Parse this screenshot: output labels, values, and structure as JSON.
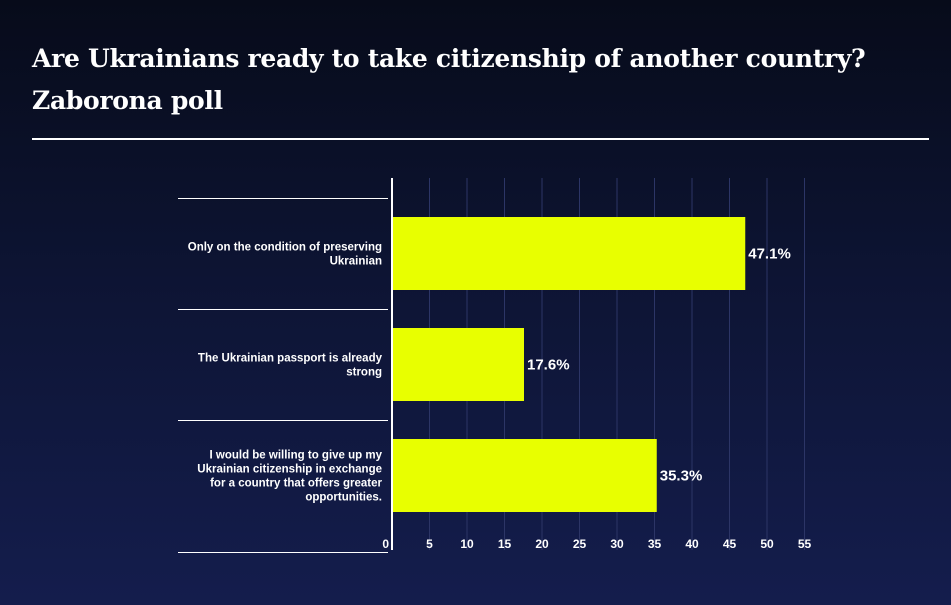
{
  "header": {
    "title_line1": "Are Ukrainians ready to take citizenship of another country?",
    "title_line2": "Zaborona poll"
  },
  "colors": {
    "bar": "#e8ff00",
    "text": "#ffffff",
    "grid": "#2c3566",
    "background_top": "#070b1a",
    "background_bottom": "#141d4d"
  },
  "chart_data": {
    "type": "bar",
    "orientation": "horizontal",
    "title": "Are Ukrainians ready to take citizenship of another country? Zaborona poll",
    "categories": [
      [
        "Only on the condition of preserving",
        "Ukrainian"
      ],
      [
        "The Ukrainian passport is already",
        "strong"
      ],
      [
        "I would be willing to give up my",
        "Ukrainian citizenship in exchange",
        "for a country that offers greater",
        "opportunities."
      ]
    ],
    "values": [
      47.1,
      17.6,
      35.3
    ],
    "data_labels": [
      "47.1%",
      "17.6%",
      "35.3%"
    ],
    "xlim": [
      0,
      55
    ],
    "xticks": [
      0,
      5,
      10,
      15,
      20,
      25,
      30,
      35,
      40,
      45,
      50,
      55
    ],
    "grid": true,
    "xlabel": "",
    "ylabel": ""
  }
}
